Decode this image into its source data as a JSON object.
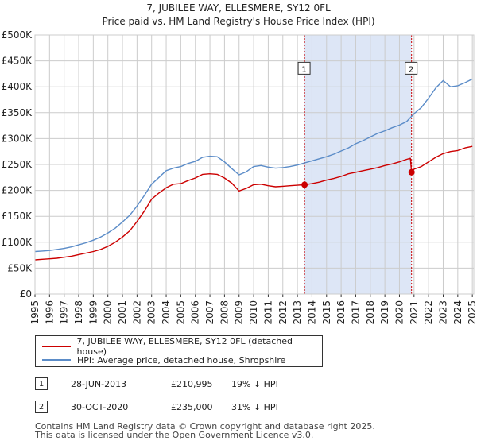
{
  "chart_data": {
    "type": "line",
    "title": "7, JUBILEE WAY, ELLESMERE, SY12 0FL",
    "subtitle": "Price paid vs. HM Land Registry's House Price Index (HPI)",
    "xlabel": "",
    "ylabel": "",
    "xlim": [
      1995.0,
      2025.1
    ],
    "ylim": [
      0,
      500000
    ],
    "yticks": [
      {
        "value": 0,
        "label": "£0"
      },
      {
        "value": 50000,
        "label": "£50K"
      },
      {
        "value": 100000,
        "label": "£100K"
      },
      {
        "value": 150000,
        "label": "£150K"
      },
      {
        "value": 200000,
        "label": "£200K"
      },
      {
        "value": 250000,
        "label": "£250K"
      },
      {
        "value": 300000,
        "label": "£300K"
      },
      {
        "value": 350000,
        "label": "£350K"
      },
      {
        "value": 400000,
        "label": "£400K"
      },
      {
        "value": 450000,
        "label": "£450K"
      },
      {
        "value": 500000,
        "label": "£500K"
      }
    ],
    "xticks": [
      "1995",
      "1996",
      "1997",
      "1998",
      "1999",
      "2000",
      "2001",
      "2002",
      "2003",
      "2004",
      "2005",
      "2006",
      "2007",
      "2008",
      "2009",
      "2010",
      "2011",
      "2012",
      "2013",
      "2014",
      "2015",
      "2016",
      "2017",
      "2018",
      "2019",
      "2020",
      "2021",
      "2022",
      "2023",
      "2024",
      "2025"
    ],
    "grid": true,
    "shaded_region": {
      "start": 2013.49,
      "end": 2020.83,
      "color": "#dde6f6"
    },
    "series": [
      {
        "name": "7, JUBILEE WAY, ELLESMERE, SY12 0FL (detached house)",
        "color": "#cc0000",
        "x": [
          1995.0,
          1995.5,
          1996.0,
          1996.5,
          1997.0,
          1997.5,
          1998.0,
          1998.5,
          1999.0,
          1999.5,
          2000.0,
          2000.5,
          2001.0,
          2001.5,
          2002.0,
          2002.5,
          2003.0,
          2003.5,
          2004.0,
          2004.5,
          2005.0,
          2005.5,
          2006.0,
          2006.5,
          2007.0,
          2007.5,
          2008.0,
          2008.5,
          2009.0,
          2009.5,
          2010.0,
          2010.5,
          2011.0,
          2011.5,
          2012.0,
          2012.5,
          2013.0,
          2013.49,
          2013.5,
          2014.0,
          2014.5,
          2015.0,
          2015.5,
          2016.0,
          2016.5,
          2017.0,
          2017.5,
          2018.0,
          2018.5,
          2019.0,
          2019.5,
          2020.0,
          2020.5,
          2020.75,
          2020.83,
          2021.0,
          2021.5,
          2022.0,
          2022.5,
          2023.0,
          2023.5,
          2024.0,
          2024.5,
          2025.0
        ],
        "values": [
          66000,
          67000,
          68000,
          69000,
          71000,
          73000,
          76000,
          79000,
          82000,
          86000,
          92000,
          100000,
          110000,
          122000,
          140000,
          160000,
          183000,
          195000,
          205000,
          212000,
          213000,
          219000,
          224000,
          231000,
          232000,
          231000,
          224000,
          214000,
          199000,
          204000,
          211000,
          212000,
          209000,
          207000,
          208000,
          209000,
          210000,
          210995,
          211000,
          213000,
          216000,
          220000,
          223000,
          227000,
          232000,
          235000,
          238000,
          241000,
          244000,
          248000,
          251000,
          255000,
          260000,
          262000,
          235000,
          241000,
          246000,
          255000,
          264000,
          271000,
          275000,
          277000,
          282000,
          285000
        ]
      },
      {
        "name": "HPI: Average price, detached house, Shropshire",
        "color": "#5b8cc8",
        "x": [
          1995.0,
          1995.5,
          1996.0,
          1996.5,
          1997.0,
          1997.5,
          1998.0,
          1998.5,
          1999.0,
          1999.5,
          2000.0,
          2000.5,
          2001.0,
          2001.5,
          2002.0,
          2002.5,
          2003.0,
          2003.5,
          2004.0,
          2004.5,
          2005.0,
          2005.5,
          2006.0,
          2006.5,
          2007.0,
          2007.5,
          2008.0,
          2008.5,
          2009.0,
          2009.5,
          2010.0,
          2010.5,
          2011.0,
          2011.5,
          2012.0,
          2012.5,
          2013.0,
          2013.5,
          2014.0,
          2014.5,
          2015.0,
          2015.5,
          2016.0,
          2016.5,
          2017.0,
          2017.5,
          2018.0,
          2018.5,
          2019.0,
          2019.5,
          2020.0,
          2020.5,
          2021.0,
          2021.5,
          2022.0,
          2022.5,
          2023.0,
          2023.5,
          2024.0,
          2024.5,
          2025.0
        ],
        "values": [
          82000,
          83000,
          84000,
          86000,
          88000,
          91000,
          95000,
          99000,
          104000,
          110000,
          118000,
          127000,
          139000,
          152000,
          170000,
          190000,
          212000,
          225000,
          238000,
          243000,
          246000,
          252000,
          256000,
          264000,
          266000,
          265000,
          255000,
          242000,
          230000,
          236000,
          246000,
          248000,
          245000,
          243000,
          244000,
          246000,
          249000,
          253000,
          257000,
          261000,
          265000,
          270000,
          276000,
          282000,
          290000,
          296000,
          303000,
          310000,
          315000,
          321000,
          326000,
          333000,
          348000,
          360000,
          378000,
          398000,
          412000,
          400000,
          402000,
          408000,
          415000
        ]
      }
    ],
    "sales": [
      {
        "label": "1",
        "date": "28-JUN-2013",
        "x": 2013.49,
        "price": 210995,
        "price_label": "£210,995",
        "hpi_label": "19% ↓ HPI"
      },
      {
        "label": "2",
        "date": "30-OCT-2020",
        "x": 2020.83,
        "price": 235000,
        "price_label": "£235,000",
        "hpi_label": "31% ↓ HPI"
      }
    ],
    "marker_label_value": 435000
  },
  "footer": {
    "line1": "Contains HM Land Registry data © Crown copyright and database right 2025.",
    "line2": "This data is licensed under the Open Government Licence v3.0."
  }
}
